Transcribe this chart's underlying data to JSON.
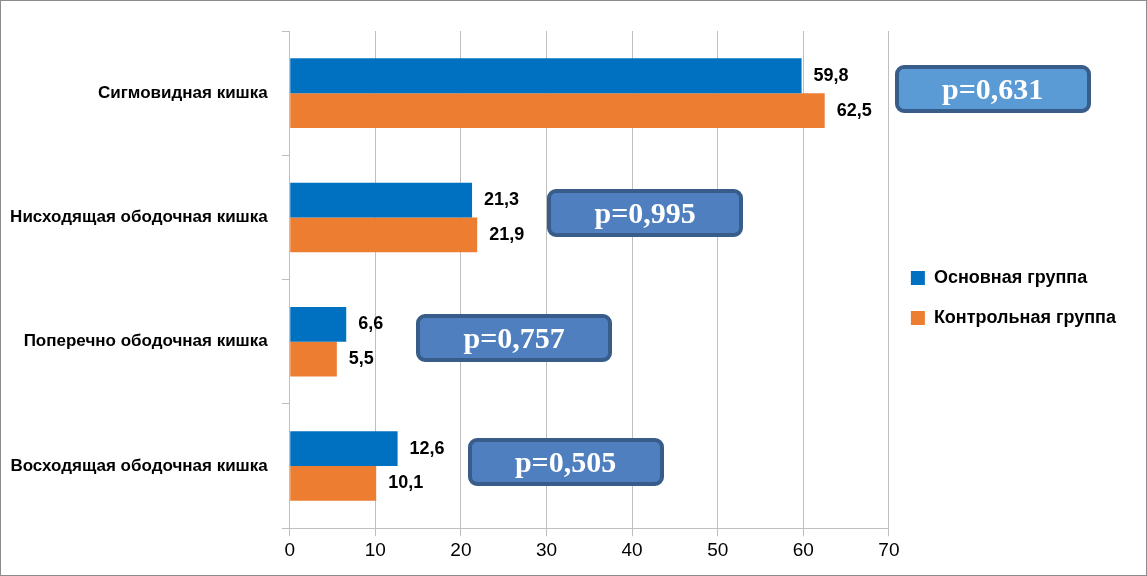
{
  "chart_data": {
    "type": "bar",
    "orientation": "horizontal",
    "categories": [
      "Сигмовидная кишка",
      "Нисходящая ободочная кишка",
      "Поперечно ободочная кишка",
      "Восходящая ободочная кишка"
    ],
    "series": [
      {
        "name": "Основная группа",
        "color": "#0070c0",
        "values": [
          59.8,
          21.3,
          6.6,
          12.6
        ],
        "value_labels": [
          "59,8",
          "21,3",
          "6,6",
          "12,6"
        ]
      },
      {
        "name": "Контрольная группа",
        "color": "#ed7d31",
        "values": [
          62.5,
          21.9,
          5.5,
          10.1
        ],
        "value_labels": [
          "62,5",
          "21,9",
          "5,5",
          "10,1"
        ]
      }
    ],
    "xlim": [
      0,
      70
    ],
    "xticks": [
      0,
      10,
      20,
      30,
      40,
      50,
      60,
      70
    ],
    "grid": "x",
    "legend": "right",
    "annotations": [
      "p=0,631",
      "p=0,995",
      "p=0,757",
      "p=0,505"
    ]
  }
}
